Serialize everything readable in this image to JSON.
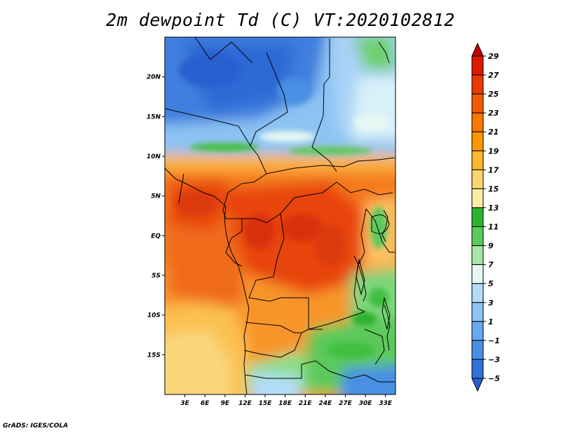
{
  "title": "2m dewpoint Td (C) VT:2020102812",
  "credit": "GrADS: IGES/COLA",
  "map": {
    "lat_labels": [
      "20N",
      "15N",
      "10N",
      "5N",
      "EQ",
      "5S",
      "10S",
      "15S"
    ],
    "lat_values": [
      20,
      15,
      10,
      5,
      0,
      -5,
      -10,
      -15
    ],
    "lon_labels": [
      "3E",
      "6E",
      "9E",
      "12E",
      "15E",
      "18E",
      "21E",
      "24E",
      "27E",
      "30E",
      "33E"
    ],
    "lon_values": [
      3,
      6,
      9,
      12,
      15,
      18,
      21,
      24,
      27,
      30,
      33
    ],
    "lon_range": [
      0,
      34.5
    ],
    "lat_range": [
      -20,
      25
    ]
  },
  "colorbar": {
    "labels": [
      "29",
      "27",
      "25",
      "23",
      "21",
      "19",
      "17",
      "15",
      "13",
      "11",
      "9",
      "7",
      "5",
      "3",
      "1",
      "−1",
      "−3",
      "−5"
    ],
    "colors": [
      "#c40000",
      "#dc1a00",
      "#ea3a00",
      "#f25a00",
      "#f87800",
      "#fb9800",
      "#fbb830",
      "#fbd570",
      "#faeea5",
      "#2fb22f",
      "#5cc95c",
      "#a6e6a6",
      "#e6f8f2",
      "#b4dcf8",
      "#8cc3f3",
      "#68a9ee",
      "#4a8fe4",
      "#2f73d8",
      "#2a5ed0"
    ]
  }
}
